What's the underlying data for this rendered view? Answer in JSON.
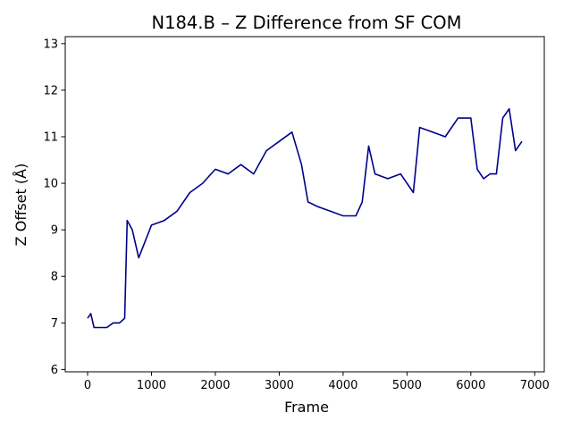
{
  "chart_data": {
    "type": "line",
    "title": "N184.B – Z Difference from SF COM",
    "xlabel": "Frame",
    "ylabel": "Z Offset (Å)",
    "xlim": [
      -350,
      7150
    ],
    "ylim": [
      5.95,
      13.15
    ],
    "xticks": [
      0,
      1000,
      2000,
      3000,
      4000,
      5000,
      6000,
      7000
    ],
    "yticks": [
      6,
      7,
      8,
      9,
      10,
      11,
      12,
      13
    ],
    "grid": false,
    "line_color": "#00008b",
    "series": [
      {
        "name": "",
        "color": "#00008b",
        "x": [
          0,
          50,
          100,
          200,
          300,
          400,
          500,
          580,
          620,
          700,
          800,
          1000,
          1200,
          1400,
          1600,
          1800,
          2000,
          2200,
          2400,
          2600,
          2800,
          3000,
          3200,
          3350,
          3450,
          3600,
          3800,
          4000,
          4200,
          4300,
          4400,
          4500,
          4700,
          4900,
          5100,
          5200,
          5400,
          5600,
          5800,
          6000,
          6100,
          6200,
          6300,
          6400,
          6500,
          6600,
          6700,
          6800
        ],
        "y": [
          7.1,
          7.2,
          6.9,
          6.9,
          6.9,
          7.0,
          7.0,
          7.1,
          9.2,
          9.0,
          8.4,
          9.1,
          9.2,
          9.4,
          9.8,
          10.0,
          10.3,
          10.2,
          10.4,
          10.2,
          10.7,
          10.9,
          11.1,
          10.4,
          9.6,
          9.5,
          9.4,
          9.3,
          9.3,
          9.6,
          10.8,
          10.2,
          10.1,
          10.2,
          9.8,
          11.2,
          11.1,
          11.0,
          11.4,
          11.4,
          10.3,
          10.1,
          10.2,
          10.2,
          11.4,
          11.6,
          10.7,
          10.9
        ]
      }
    ]
  }
}
